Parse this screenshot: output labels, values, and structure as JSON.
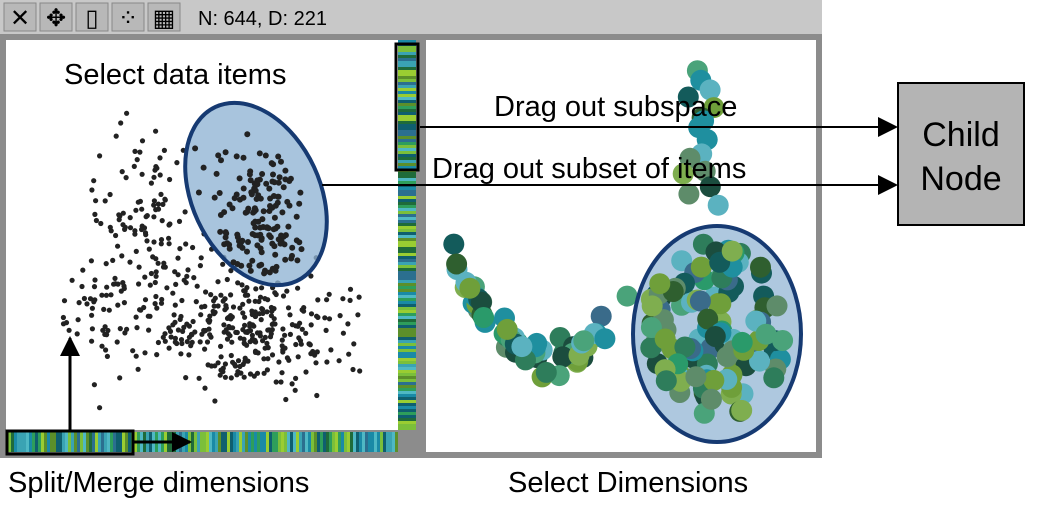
{
  "toolbar": {
    "status": "N: 644, D: 221",
    "tools": [
      {
        "name": "close-tool-icon",
        "glyph": "✕"
      },
      {
        "name": "move-tool-icon",
        "glyph": "✥"
      },
      {
        "name": "layout-tool-icon",
        "glyph": "▯"
      },
      {
        "name": "scatter-tool-icon",
        "glyph": "⁘"
      },
      {
        "name": "grid-tool-icon",
        "glyph": "▦"
      }
    ]
  },
  "labels": {
    "select_items": "Select data items",
    "drag_subspace": "Drag out subspace",
    "drag_subset": "Drag out subset of items",
    "split_merge": "Split/Merge dimensions",
    "select_dims": "Select Dimensions"
  },
  "child_node": {
    "line1": "Child",
    "line2": "Node"
  },
  "colors": {
    "toolbar_bg": "#c8c8c8",
    "frame": "#8c8c8c",
    "selection_fill": "#8fb3d3",
    "selection_stroke": "#163a72",
    "child_fill": "#b4b4b4",
    "point_dark": "#222222",
    "strip_palette": [
      "#1a8aa6",
      "#2e9e5b",
      "#7bbf3a",
      "#2b6f8f",
      "#4fb8c4",
      "#1f6b3a",
      "#9acd32",
      "#3aa3b3",
      "#5c8f2a",
      "#0f5f6f"
    ],
    "bubble_palette": [
      "#1b4d3e",
      "#2e7d5b",
      "#4aa37a",
      "#1f8f9f",
      "#5bb2c0",
      "#3a6b8a",
      "#6f9f3a",
      "#2f5f2f",
      "#5e8c6a",
      "#2a9a6a",
      "#7fae4f",
      "#135b5b"
    ]
  }
}
